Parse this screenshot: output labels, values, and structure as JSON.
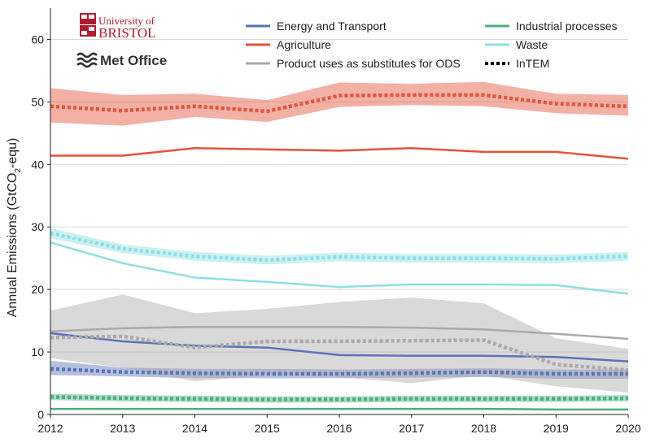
{
  "logos": {
    "university_line1": "University of",
    "university_line2": "BRISTOL",
    "met_office": "Met Office"
  },
  "chart_data": {
    "type": "line",
    "ylabel_main": "Annual Emissions (GtCO",
    "ylabel_sub": "2",
    "ylabel_tail": "-equ)",
    "xlabel": "",
    "x": [
      2012,
      2013,
      2014,
      2015,
      2016,
      2017,
      2018,
      2019,
      2020
    ],
    "xlim": [
      2012,
      2020
    ],
    "ylim": [
      0,
      65
    ],
    "yticks": [
      0,
      10,
      20,
      30,
      40,
      50,
      60
    ],
    "grid": "horizontal",
    "legend_placement": "top-right",
    "series": [
      {
        "name": "Energy and Transport",
        "key": "energy",
        "color": "#5b74b8",
        "inventory": [
          13.0,
          11.7,
          11.0,
          10.7,
          9.5,
          9.4,
          9.4,
          9.2,
          8.5
        ],
        "intem": [
          7.3,
          6.8,
          6.6,
          6.5,
          6.5,
          6.6,
          6.8,
          6.5,
          6.5
        ],
        "intem_low": [
          6.3,
          6.1,
          5.8,
          5.8,
          5.8,
          5.9,
          6.0,
          5.7,
          5.7
        ],
        "intem_high": [
          8.6,
          7.5,
          7.3,
          7.3,
          7.2,
          7.3,
          7.4,
          7.2,
          7.2
        ]
      },
      {
        "name": "Agriculture",
        "key": "agriculture",
        "color": "#e5533a",
        "inventory": [
          41.4,
          41.4,
          42.6,
          42.4,
          42.2,
          42.6,
          42.0,
          42.0,
          40.9
        ],
        "intem": [
          49.3,
          48.6,
          49.3,
          48.5,
          51.0,
          51.1,
          51.1,
          49.7,
          49.3
        ],
        "intem_low": [
          46.7,
          46.2,
          47.6,
          46.8,
          49.2,
          49.5,
          49.3,
          48.2,
          47.8
        ],
        "intem_high": [
          52.2,
          51.1,
          51.3,
          50.3,
          53.1,
          52.9,
          53.2,
          51.3,
          51.1
        ]
      },
      {
        "name": "Product uses as substitutes for ODS",
        "key": "ods",
        "color": "#aaaaaa",
        "inventory": [
          13.3,
          13.8,
          14.0,
          14.0,
          14.0,
          13.9,
          13.6,
          12.9,
          12.1
        ],
        "intem": [
          12.3,
          12.5,
          10.7,
          11.7,
          11.7,
          11.8,
          11.9,
          8.0,
          7.1
        ],
        "intem_low": [
          9.0,
          7.5,
          5.3,
          6.3,
          6.0,
          5.0,
          6.3,
          4.5,
          3.5
        ],
        "intem_high": [
          16.6,
          19.2,
          16.2,
          16.9,
          18.0,
          18.7,
          17.8,
          12.2,
          10.5
        ]
      },
      {
        "name": "Industrial processes",
        "key": "industrial",
        "color": "#4caf7d",
        "inventory": [
          0.9,
          0.9,
          0.9,
          0.9,
          0.9,
          0.9,
          0.9,
          0.8,
          0.8
        ],
        "intem": [
          2.8,
          2.6,
          2.5,
          2.4,
          2.4,
          2.5,
          2.5,
          2.5,
          2.6
        ],
        "intem_low": [
          2.3,
          2.1,
          2.0,
          1.9,
          1.9,
          2.0,
          2.0,
          2.0,
          2.1
        ],
        "intem_high": [
          3.3,
          3.1,
          3.0,
          2.9,
          2.9,
          3.0,
          3.0,
          3.0,
          3.1
        ]
      },
      {
        "name": "Waste",
        "key": "waste",
        "color": "#8edfe3",
        "inventory": [
          27.5,
          24.2,
          21.9,
          21.2,
          20.4,
          20.8,
          20.8,
          20.7,
          19.3
        ],
        "intem": [
          29.0,
          26.5,
          25.3,
          24.7,
          25.2,
          25.0,
          25.0,
          24.9,
          25.3
        ],
        "intem_low": [
          28.2,
          25.8,
          24.6,
          24.0,
          24.5,
          24.3,
          24.3,
          24.2,
          24.6
        ],
        "intem_high": [
          29.8,
          27.2,
          26.0,
          25.4,
          25.9,
          25.7,
          25.7,
          25.6,
          26.0
        ]
      }
    ],
    "legend": [
      {
        "label": "Energy and Transport",
        "color": "#5b74b8",
        "style": "solid"
      },
      {
        "label": "Industrial processes",
        "color": "#4caf7d",
        "style": "solid"
      },
      {
        "label": "Agriculture",
        "color": "#e5533a",
        "style": "solid"
      },
      {
        "label": "Waste",
        "color": "#8edfe3",
        "style": "solid"
      },
      {
        "label": "Product uses as substitutes for ODS",
        "color": "#aaaaaa",
        "style": "solid"
      },
      {
        "label": "InTEM",
        "color": "#000000",
        "style": "dotted"
      }
    ]
  }
}
